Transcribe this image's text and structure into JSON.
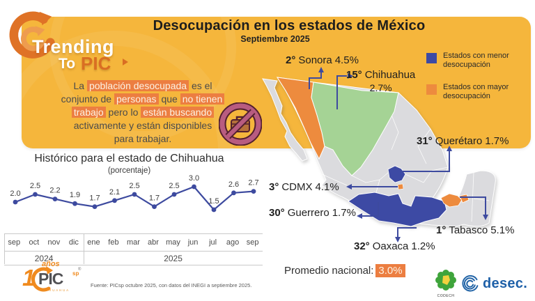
{
  "brand": {
    "line1": "Trending",
    "to": "To",
    "pic": "PIC"
  },
  "header": {
    "title": "Desocupación en los estados de México",
    "subtitle": "Septiembre 2025"
  },
  "definition": {
    "lines": [
      [
        {
          "t": "La ",
          "hl": false
        },
        {
          "t": "población desocupada",
          "hl": true
        },
        {
          "t": " es el",
          "hl": false
        }
      ],
      [
        {
          "t": "conjunto de ",
          "hl": false
        },
        {
          "t": "personas",
          "hl": true
        },
        {
          "t": " que ",
          "hl": false
        },
        {
          "t": "no tienen",
          "hl": true
        }
      ],
      [
        {
          "t": "trabajo",
          "hl": true
        },
        {
          "t": " pero lo ",
          "hl": false
        },
        {
          "t": "están buscando",
          "hl": true
        }
      ],
      [
        {
          "t": "activamente y están disponibles",
          "hl": false
        }
      ],
      [
        {
          "t": "para trabajar.",
          "hl": false
        }
      ]
    ]
  },
  "legend": {
    "items": [
      {
        "label1": "Estados con menor",
        "label2": "desocupación",
        "color": "#3D4AA4"
      },
      {
        "label1": "Estados con mayor",
        "label2": "desocupación",
        "color": "#ED8B3E"
      }
    ]
  },
  "states": {
    "sonora": {
      "rank": "2°",
      "name": "Sonora",
      "value": "4.5%",
      "color": "#ED8B3E"
    },
    "chihuahua": {
      "rank": "15°",
      "name": "Chihuahua",
      "value": "2.7%",
      "color": "#A5D395"
    },
    "queretaro": {
      "rank": "31°",
      "name": "Querétaro",
      "value": "1.7%",
      "color": "#3D4AA4"
    },
    "cdmx": {
      "rank": "3°",
      "name": "CDMX",
      "value": "4.1%",
      "color": "#ED8B3E"
    },
    "guerrero": {
      "rank": "30°",
      "name": "Guerrero",
      "value": "1.7%",
      "color": "#3D4AA4"
    },
    "oaxaca": {
      "rank": "32°",
      "name": "Oaxaca",
      "value": "1.2%",
      "color": "#3D4AA4"
    },
    "tabasco": {
      "rank": "1°",
      "name": "Tabasco",
      "value": "5.1%",
      "color": "#ED8B3E"
    }
  },
  "national": {
    "label": "Promedio nacional:",
    "value": "3.0%"
  },
  "chart_data": {
    "type": "line",
    "title": "Histórico para el estado de Chihuahua",
    "subtitle": "(porcentaje)",
    "x": [
      "sep",
      "oct",
      "nov",
      "dic",
      "ene",
      "feb",
      "mar",
      "abr",
      "may",
      "jun",
      "jul",
      "ago",
      "sep"
    ],
    "year_groups": [
      {
        "year": "2024",
        "months": 4
      },
      {
        "year": "2025",
        "months": 9
      }
    ],
    "values": [
      2.0,
      2.5,
      2.2,
      1.9,
      1.7,
      2.1,
      2.5,
      1.7,
      2.5,
      3.0,
      1.5,
      2.6,
      2.7
    ],
    "ylim": [
      1.0,
      3.5
    ],
    "grid": false,
    "legend_position": "none",
    "point_labels": true,
    "line_color": "#3D4A9F"
  },
  "footer": {
    "source": "Fuente: PICsp octubre 2025, con datos del INEGI a septiembre 2025.",
    "pic_logo": {
      "num": "1",
      "text": "PIC",
      "sup": "sp",
      "reg": "®",
      "anios": "años",
      "place": "CHIHUAHUA"
    },
    "codech": "CODECH",
    "desec": "desec."
  },
  "colors": {
    "banner": "#F5B63C",
    "accent_orange": "#EC7E41",
    "state_orange": "#ED8B3E",
    "state_blue": "#3D4AA4",
    "state_green": "#A5D395",
    "state_gray": "#DBDBDE",
    "line": "#3D4A9F",
    "brand_orange": "#D96E23",
    "desec_blue": "#1E60A8",
    "codech_green": "#3FA43B"
  }
}
